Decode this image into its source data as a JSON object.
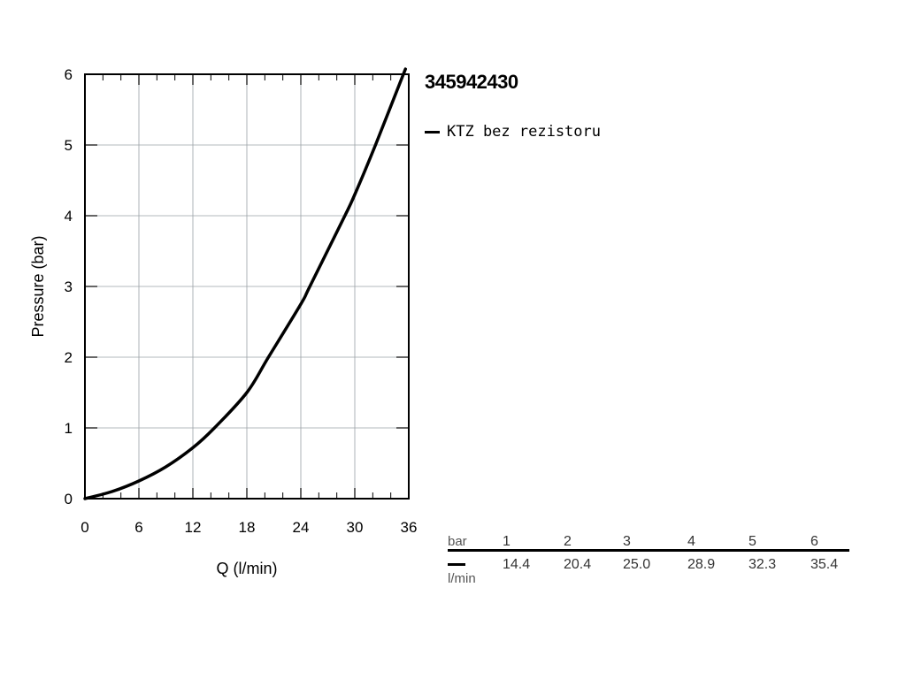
{
  "chart_data": {
    "type": "line",
    "title": "345942430",
    "xlabel": "Q (l/min)",
    "ylabel": "Pressure (bar)",
    "xlim": [
      0,
      36
    ],
    "ylim": [
      0,
      6
    ],
    "x_ticks": [
      "0",
      "6",
      "12",
      "18",
      "24",
      "30",
      "36"
    ],
    "y_ticks": [
      "0",
      "1",
      "2",
      "3",
      "4",
      "5",
      "6"
    ],
    "grid": true,
    "legend_position": "top-right outside plot",
    "series": [
      {
        "name": "KTZ bez rezistoru",
        "color": "#000000",
        "x": [
          0,
          3,
          6,
          9,
          12,
          14.4,
          18,
          20.4,
          24,
          25.0,
          28.9,
          30,
          32.3,
          35.4,
          36
        ],
        "y": [
          0,
          0.1,
          0.25,
          0.45,
          0.72,
          1.0,
          1.5,
          2.0,
          2.75,
          3.0,
          4.0,
          4.3,
          5.0,
          6.0,
          6.2
        ]
      }
    ]
  },
  "table": {
    "row1_unit": "bar",
    "row1_values": [
      "1",
      "2",
      "3",
      "4",
      "5",
      "6"
    ],
    "row2_unit": "l/min",
    "row2_values": [
      "14.4",
      "20.4",
      "25.0",
      "28.9",
      "32.3",
      "35.4"
    ]
  }
}
